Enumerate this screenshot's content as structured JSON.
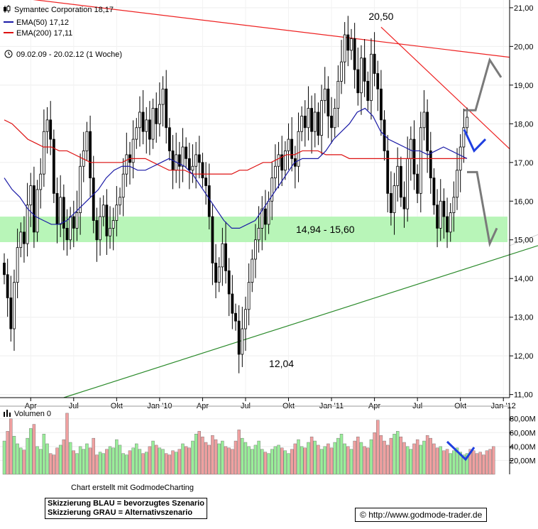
{
  "chart_data": [
    {
      "type": "candlestick",
      "title": "Symantec Corporation",
      "legend": [
        {
          "label": "Symantec Corporation",
          "value": "18,17",
          "color": "#000000",
          "icon": "candle-icon"
        },
        {
          "label": "EMA(50)",
          "value": "17,12",
          "color": "#1a1aa6"
        },
        {
          "label": "EMA(200)",
          "value": "17,11",
          "color": "#dd1111"
        }
      ],
      "period": "09.02.09 - 20.02.12 (1 Woche)",
      "y_ticks": [
        "21,00",
        "20,00",
        "19,00",
        "18,00",
        "17,00",
        "16,00",
        "15,00",
        "14,00",
        "13,00",
        "12,00",
        "11,00"
      ],
      "y_tick_values": [
        21,
        20,
        19,
        18,
        17,
        16,
        15,
        14,
        13,
        12,
        11
      ],
      "ylim": [
        10.92,
        21.2
      ],
      "x_ticks": [
        "Apr",
        "Jul",
        "Okt",
        "Jan '10",
        "Apr",
        "Jul",
        "Okt",
        "Jan '11",
        "Apr",
        "Jul",
        "Okt",
        "Jan '12"
      ],
      "x_tick_weeks": [
        8,
        21,
        34,
        47,
        60,
        73,
        86,
        99,
        112,
        125,
        138,
        151
      ],
      "annotations": [
        {
          "text": "20,50",
          "week": 114,
          "value": 20.5
        },
        {
          "text": "12,04",
          "week": 80,
          "value": 12.04
        }
      ],
      "support_zone": {
        "low": 14.94,
        "high": 15.6,
        "label": "14,94 - 15,60"
      },
      "close_weekly": [
        14.1,
        13.5,
        12.7,
        13.9,
        14.8,
        15.2,
        14.9,
        15.9,
        16.4,
        15.2,
        16.3,
        16.7,
        17.8,
        18.1,
        17.6,
        16.2,
        15.4,
        16.1,
        15.3,
        15.0,
        15.6,
        15.3,
        15.7,
        16.9,
        17.3,
        17.8,
        16.6,
        15.5,
        15.0,
        15.6,
        15.9,
        15.1,
        15.3,
        15.5,
        15.9,
        16.1,
        16.7,
        17.2,
        17.0,
        17.6,
        17.9,
        18.3,
        17.8,
        18.1,
        17.6,
        18.4,
        18.0,
        18.5,
        18.9,
        17.9,
        17.3,
        16.8,
        17.2,
        16.9,
        17.4,
        17.1,
        16.8,
        16.9,
        17.2,
        17.0,
        16.6,
        16.4,
        15.6,
        14.4,
        13.9,
        14.3,
        14.9,
        14.2,
        13.6,
        13.1,
        12.9,
        12.04,
        12.7,
        13.2,
        13.9,
        14.5,
        15.0,
        15.3,
        15.8,
        15.4,
        16.0,
        16.6,
        16.9,
        17.2,
        16.8,
        17.3,
        17.6,
        17.1,
        16.9,
        17.8,
        18.2,
        17.9,
        18.4,
        17.8,
        18.3,
        17.7,
        18.6,
        18.9,
        18.2,
        17.9,
        18.4,
        19.1,
        19.6,
        20.3,
        19.9,
        20.2,
        19.4,
        18.8,
        19.7,
        19.1,
        18.6,
        19.8,
        19.3,
        18.9,
        18.1,
        17.3,
        16.2,
        15.7,
        16.4,
        16.9,
        16.1,
        15.8,
        17.1,
        17.6,
        16.7,
        16.2,
        17.9,
        18.3,
        17.3,
        16.6,
        15.9,
        15.3,
        16.0,
        15.6,
        15.2,
        15.7,
        16.1,
        16.8,
        17.4,
        17.9,
        18.17
      ],
      "ema50": [
        16.6,
        16.3,
        16.1,
        15.8,
        15.6,
        15.5,
        15.4,
        15.4,
        15.5,
        15.7,
        15.9,
        16.1,
        16.3,
        16.6,
        16.8,
        16.9,
        16.9,
        16.8,
        16.8,
        16.9,
        17.0,
        17.1,
        17.0,
        16.9,
        16.7,
        16.4,
        16.1,
        15.8,
        15.5,
        15.3,
        15.3,
        15.4,
        15.5,
        15.8,
        16.1,
        16.4,
        16.7,
        17.0,
        17.1,
        17.1,
        17.1,
        17.3,
        17.6,
        17.8,
        18.0,
        18.3,
        18.4,
        18.2,
        17.8,
        17.6,
        17.5,
        17.4,
        17.3,
        17.3,
        17.2,
        17.3,
        17.4,
        17.3,
        17.2,
        17.1
      ],
      "ema200": [
        18.1,
        18.0,
        17.8,
        17.6,
        17.5,
        17.4,
        17.4,
        17.3,
        17.3,
        17.2,
        17.1,
        17.0,
        17.0,
        17.0,
        17.0,
        17.0,
        17.1,
        17.1,
        17.1,
        17.0,
        16.9,
        16.8,
        16.8,
        16.8,
        16.7,
        16.7,
        16.7,
        16.7,
        16.7,
        16.7,
        16.8,
        16.8,
        16.9,
        17.0,
        17.0,
        17.1,
        17.2,
        17.2,
        17.3,
        17.3,
        17.3,
        17.2,
        17.2,
        17.2,
        17.1,
        17.1,
        17.1,
        17.1,
        17.1,
        17.1,
        17.1,
        17.1,
        17.1,
        17.1,
        17.1,
        17.1,
        17.1,
        17.1,
        17.1,
        17.11
      ]
    },
    {
      "type": "bar",
      "title": "Volumen 0",
      "y_ticks": [
        "80,00M",
        "60,00M",
        "40,00M",
        "20,00M"
      ],
      "y_tick_values": [
        80,
        60,
        40,
        20
      ],
      "ylim": [
        0,
        92
      ],
      "volume_millions": [
        48,
        62,
        80,
        55,
        44,
        38,
        35,
        52,
        66,
        72,
        40,
        36,
        58,
        44,
        30,
        28,
        38,
        42,
        50,
        88,
        46,
        34,
        30,
        40,
        36,
        44,
        38,
        52,
        28,
        32,
        30,
        36,
        40,
        38,
        50,
        42,
        30,
        28,
        34,
        38,
        44,
        36,
        30,
        32,
        40,
        48,
        42,
        38,
        36,
        30,
        28,
        34,
        32,
        36,
        44,
        40,
        38,
        48,
        58,
        62,
        54,
        46,
        42,
        56,
        50,
        44,
        48,
        40,
        38,
        36,
        48,
        64,
        52,
        46,
        40,
        36,
        42,
        48,
        36,
        32,
        30,
        36,
        40,
        42,
        38,
        34,
        30,
        36,
        44,
        50,
        40,
        38,
        46,
        54,
        48,
        42,
        36,
        40,
        44,
        38,
        46,
        52,
        58,
        44,
        40,
        36,
        48,
        54,
        46,
        40,
        38,
        50,
        60,
        78,
        56,
        48,
        42,
        52,
        58,
        62,
        54,
        46,
        40,
        36,
        44,
        50,
        42,
        48,
        56,
        52,
        44,
        38,
        40,
        34,
        36,
        30,
        34,
        38,
        32,
        28,
        30,
        36,
        34,
        30,
        32,
        28,
        34,
        36,
        40
      ]
    }
  ],
  "scenario_labels": {
    "line1": "Skizzierung BLAU = bevorzugtes Szenario",
    "line2": "Skizzierung GRAU = Alternativszenario"
  },
  "credit": "Chart erstellt mit GodmodeCharting",
  "source_url": "http://www.godmode-trader.de",
  "source_url_icon": "copyright-icon",
  "colors": {
    "up": "#ffffff",
    "down": "#000000",
    "ema50": "#1a1aa6",
    "ema200": "#dd1111",
    "zone": "#b8f5b8",
    "trend_green": "#2a8a2a",
    "trend_red": "#ee2222",
    "blue": "#1f3fe0",
    "grey": "#7a7a7a",
    "vol_up": "#99ee99",
    "vol_down": "#f0a0a0"
  }
}
